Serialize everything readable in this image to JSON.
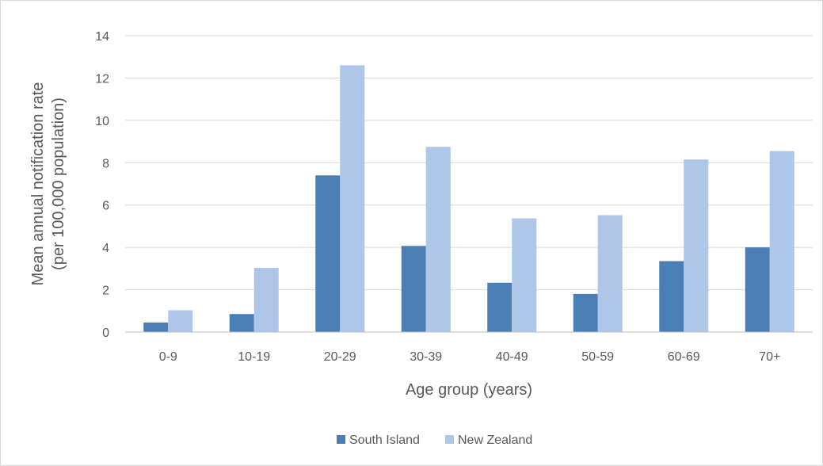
{
  "chart_data": {
    "type": "bar",
    "title": "",
    "xlabel": "Age group (years)",
    "ylabel_lines": [
      "Mean annual notification rate",
      "(per 100,000 population)"
    ],
    "categories": [
      "0-9",
      "10-19",
      "20-29",
      "30-39",
      "40-49",
      "50-59",
      "60-69",
      "70+"
    ],
    "series": [
      {
        "name": "South Island",
        "color": "#4a7eb4",
        "values": [
          0.45,
          0.85,
          7.4,
          4.07,
          2.33,
          1.8,
          3.35,
          4.0
        ]
      },
      {
        "name": "New Zealand",
        "color": "#aec6e8",
        "values": [
          1.03,
          3.03,
          12.6,
          8.75,
          5.37,
          5.52,
          8.15,
          8.55
        ]
      }
    ],
    "ylim": [
      0,
      14
    ],
    "yticks": [
      0,
      2,
      4,
      6,
      8,
      10,
      12,
      14
    ],
    "grid": true,
    "legend_position": "bottom"
  }
}
